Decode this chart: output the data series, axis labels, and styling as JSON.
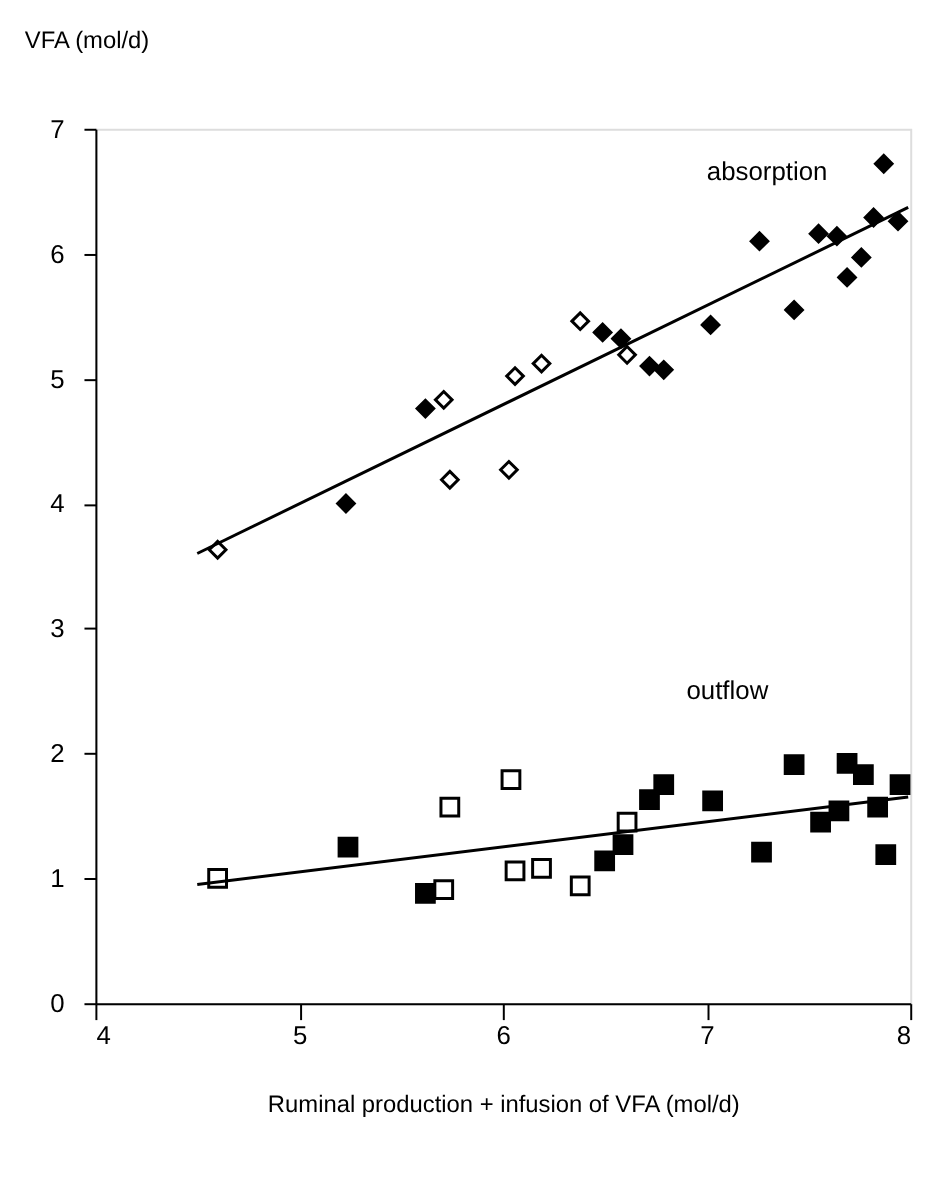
{
  "chart_data": {
    "type": "scatter",
    "xlabel": "Ruminal production + infusion of VFA  (mol/d)",
    "ylabel": "VFA  (mol/d)",
    "xlim": [
      4,
      8
    ],
    "xticks": [
      4,
      5,
      6,
      7,
      8
    ],
    "ylim": [
      0,
      7
    ],
    "yticks": [
      0,
      1,
      2,
      3,
      4,
      5,
      6,
      7
    ],
    "grid": false,
    "series": [
      {
        "marker": "diamond",
        "color": "#ffffff",
        "x": [
          4.6,
          5.71,
          5.74,
          6.03,
          6.06,
          6.19,
          6.38,
          6.61
        ],
        "values": [
          3.63,
          4.83,
          4.19,
          4.27,
          5.02,
          5.12,
          5.46,
          5.19
        ]
      },
      {
        "marker": "diamond",
        "color": "#000000",
        "x": [
          5.23,
          5.62,
          6.49,
          6.58,
          6.72,
          6.79,
          7.02,
          7.26,
          7.43,
          7.55,
          7.64,
          7.69,
          7.76,
          7.82,
          7.87,
          7.94
        ],
        "values": [
          4.0,
          4.76,
          5.37,
          5.32,
          5.1,
          5.07,
          5.43,
          6.1,
          5.55,
          6.16,
          6.14,
          5.81,
          5.97,
          6.29,
          6.72,
          6.26
        ]
      },
      {
        "type": "line",
        "color": "#000000",
        "x": [
          4.5,
          7.99
        ],
        "values": [
          3.6,
          6.37
        ]
      },
      {
        "marker": "square",
        "color": "#ffffff",
        "x": [
          4.6,
          5.71,
          5.74,
          6.04,
          6.06,
          6.19,
          6.38,
          6.61
        ],
        "values": [
          1.0,
          0.91,
          1.57,
          1.79,
          1.06,
          1.08,
          0.94,
          1.45
        ]
      },
      {
        "marker": "square",
        "color": "#000000",
        "x": [
          5.24,
          5.62,
          6.5,
          6.59,
          6.72,
          6.79,
          7.03,
          7.27,
          7.43,
          7.56,
          7.65,
          7.69,
          7.77,
          7.84,
          7.88,
          7.95
        ],
        "values": [
          1.25,
          0.88,
          1.14,
          1.27,
          1.63,
          1.75,
          1.62,
          1.21,
          1.91,
          1.45,
          1.54,
          1.92,
          1.83,
          1.57,
          1.19,
          1.75
        ]
      },
      {
        "type": "line",
        "color": "#000000",
        "x": [
          4.5,
          7.99
        ],
        "values": [
          0.95,
          1.65
        ]
      }
    ],
    "annotations": [
      "absorption",
      "outflow"
    ]
  }
}
